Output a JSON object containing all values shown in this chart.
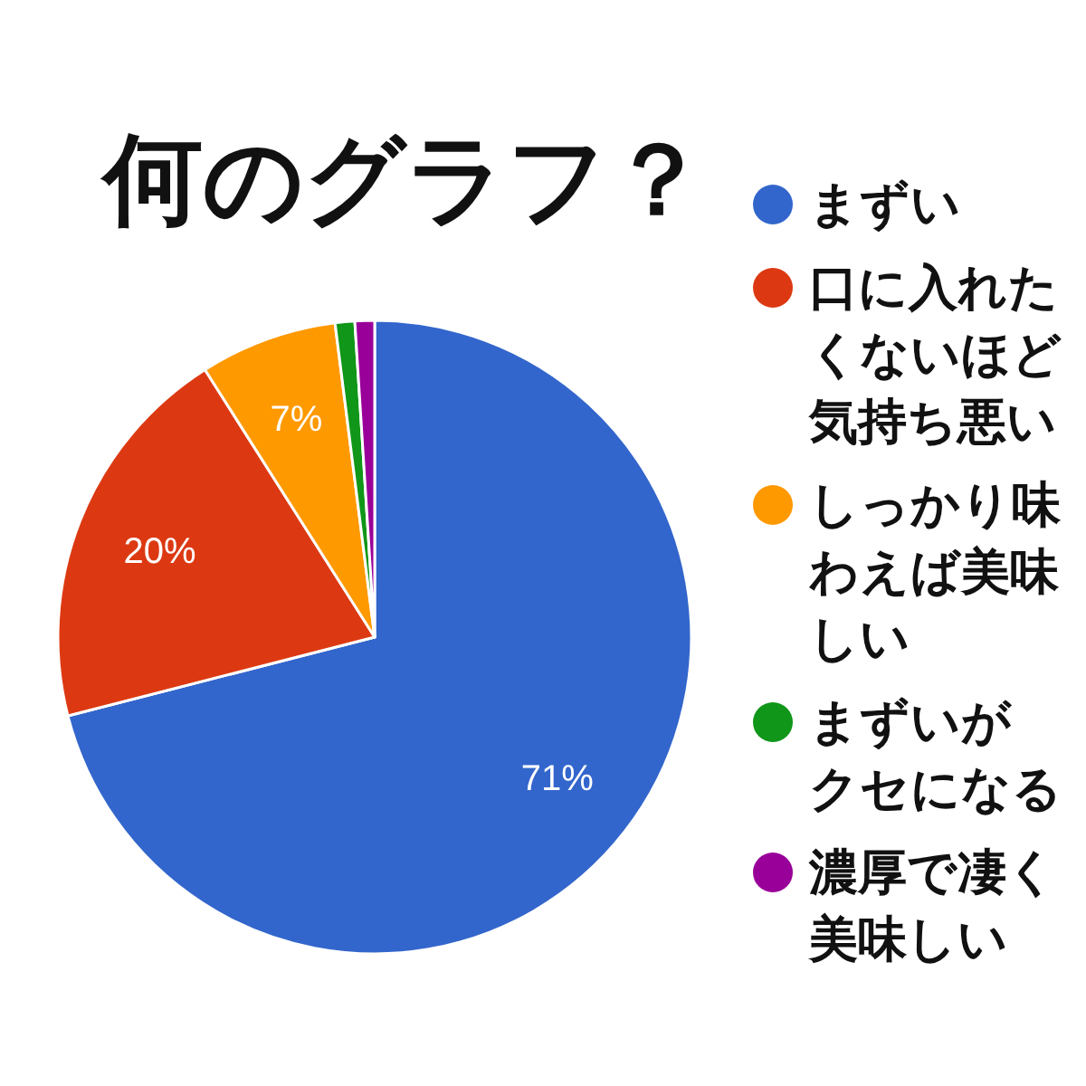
{
  "chart_data": {
    "type": "pie",
    "title": "何のグラフ？",
    "categories": [
      "まずい",
      "口に入れたくないほど気持ち悪い",
      "しっかり味わえば美味しい",
      "まずいがクセになる",
      "濃厚で凄く美味しい"
    ],
    "values": [
      71,
      20,
      7,
      1,
      1
    ],
    "colors": [
      "#3366cc",
      "#dc3912",
      "#ff9900",
      "#109618",
      "#990099"
    ],
    "value_labels": [
      "71%",
      "20%",
      "7%",
      null,
      null
    ],
    "legend": "right"
  }
}
